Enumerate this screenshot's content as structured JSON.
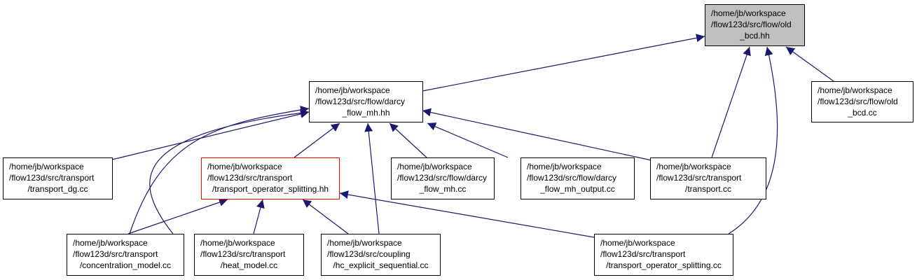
{
  "colors": {
    "edge": "#191970",
    "focus_fill": "#bfbfbf",
    "highlight_border": "#ff0000",
    "node_border": "#000000"
  },
  "nodes": {
    "old_bcd_hh": {
      "lines": [
        "/home/jb/workspace",
        "/flow123d/src/flow/old",
        "_bcd.hh"
      ]
    },
    "darcy_flow_mh_hh": {
      "lines": [
        "/home/jb/workspace",
        "/flow123d/src/flow/darcy",
        "_flow_mh.hh"
      ]
    },
    "old_bcd_cc": {
      "lines": [
        "/home/jb/workspace",
        "/flow123d/src/flow/old",
        "_bcd.cc"
      ]
    },
    "transport_dg_cc": {
      "lines": [
        "/home/jb/workspace",
        "/flow123d/src/transport",
        "/transport_dg.cc"
      ]
    },
    "transport_operator_splitting_hh": {
      "lines": [
        "/home/jb/workspace",
        "/flow123d/src/transport",
        "/transport_operator_splitting.hh"
      ]
    },
    "darcy_flow_mh_cc": {
      "lines": [
        "/home/jb/workspace",
        "/flow123d/src/flow/darcy",
        "_flow_mh.cc"
      ]
    },
    "darcy_flow_mh_output_cc": {
      "lines": [
        "/home/jb/workspace",
        "/flow123d/src/flow/darcy",
        "_flow_mh_output.cc"
      ]
    },
    "transport_cc": {
      "lines": [
        "/home/jb/workspace",
        "/flow123d/src/transport",
        "/transport.cc"
      ]
    },
    "concentration_model_cc": {
      "lines": [
        "/home/jb/workspace",
        "/flow123d/src/transport",
        "/concentration_model.cc"
      ]
    },
    "heat_model_cc": {
      "lines": [
        "/home/jb/workspace",
        "/flow123d/src/transport",
        "/heat_model.cc"
      ]
    },
    "hc_explicit_sequential_cc": {
      "lines": [
        "/home/jb/workspace",
        "/flow123d/src/coupling",
        "/hc_explicit_sequential.cc"
      ]
    },
    "transport_operator_splitting_cc": {
      "lines": [
        "/home/jb/workspace",
        "/flow123d/src/transport",
        "/transport_operator_splitting.cc"
      ]
    }
  },
  "edges": [
    {
      "from": "darcy_flow_mh_hh",
      "to": "old_bcd_hh"
    },
    {
      "from": "transport_cc",
      "to": "old_bcd_hh"
    },
    {
      "from": "transport_operator_splitting_cc",
      "to": "old_bcd_hh"
    },
    {
      "from": "old_bcd_cc",
      "to": "old_bcd_hh"
    },
    {
      "from": "transport_dg_cc",
      "to": "darcy_flow_mh_hh"
    },
    {
      "from": "concentration_model_cc",
      "to": "darcy_flow_mh_hh"
    },
    {
      "from": "heat_model_cc",
      "to": "darcy_flow_mh_hh"
    },
    {
      "from": "transport_operator_splitting_hh",
      "to": "darcy_flow_mh_hh"
    },
    {
      "from": "hc_explicit_sequential_cc",
      "to": "darcy_flow_mh_hh"
    },
    {
      "from": "darcy_flow_mh_cc",
      "to": "darcy_flow_mh_hh"
    },
    {
      "from": "darcy_flow_mh_output_cc",
      "to": "darcy_flow_mh_hh"
    },
    {
      "from": "transport_cc",
      "to": "darcy_flow_mh_hh"
    },
    {
      "from": "concentration_model_cc",
      "to": "transport_operator_splitting_hh"
    },
    {
      "from": "heat_model_cc",
      "to": "transport_operator_splitting_hh"
    },
    {
      "from": "hc_explicit_sequential_cc",
      "to": "transport_operator_splitting_hh"
    },
    {
      "from": "transport_operator_splitting_cc",
      "to": "transport_operator_splitting_hh"
    }
  ]
}
